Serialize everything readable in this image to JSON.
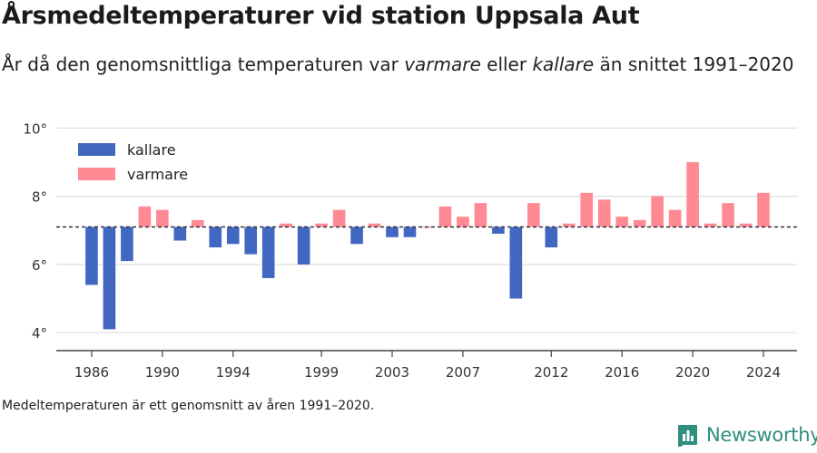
{
  "header": {
    "title": "Årsmedeltemperaturer vid station Uppsala Aut",
    "subtitle_part1": "År då den genomsnittliga temperaturen var ",
    "subtitle_warm": "varmare",
    "subtitle_part2": " eller ",
    "subtitle_cold": "kallare",
    "subtitle_part3": " än snittet 1991–2020"
  },
  "footer": {
    "source_note": "Medeltemperaturen är ett genomsnitt av åren 1991–2020.",
    "brand": "Newsworthy"
  },
  "chart_data": {
    "type": "bar",
    "title": "Årsmedeltemperaturer vid station Uppsala Aut",
    "xlabel": "",
    "ylabel": "",
    "baseline": 7.1,
    "ylim": [
      3.5,
      10.3
    ],
    "yticks": [
      4,
      6,
      8,
      10
    ],
    "ytick_labels": [
      "4°",
      "6°",
      "8°",
      "10°"
    ],
    "xlim": [
      1984.0,
      2025.9
    ],
    "xticks": [
      1986,
      1990,
      1994,
      1999,
      2003,
      2007,
      2012,
      2016,
      2020,
      2024
    ],
    "colors": {
      "kallare": "#4267c1",
      "varmare": "#ff8a94"
    },
    "legend": {
      "position": "top-left",
      "entries": [
        "kallare",
        "varmare"
      ]
    },
    "grid": true,
    "years": [
      1986,
      1987,
      1988,
      1989,
      1990,
      1991,
      1992,
      1993,
      1994,
      1995,
      1996,
      1997,
      1998,
      1999,
      2000,
      2001,
      2002,
      2003,
      2004,
      2005,
      2006,
      2007,
      2008,
      2009,
      2010,
      2011,
      2012,
      2013,
      2014,
      2015,
      2016,
      2017,
      2018,
      2019,
      2020,
      2021,
      2022,
      2023,
      2024
    ],
    "values": [
      5.4,
      4.1,
      6.1,
      7.7,
      7.6,
      6.7,
      7.3,
      6.5,
      6.6,
      6.3,
      5.6,
      7.2,
      6.0,
      7.2,
      7.6,
      6.6,
      7.2,
      6.8,
      6.8,
      7.1,
      7.7,
      7.4,
      7.8,
      6.9,
      5.0,
      7.8,
      6.5,
      7.2,
      8.1,
      7.9,
      7.4,
      7.3,
      8.0,
      7.6,
      9.0,
      7.2,
      7.8,
      7.2,
      8.1
    ]
  }
}
